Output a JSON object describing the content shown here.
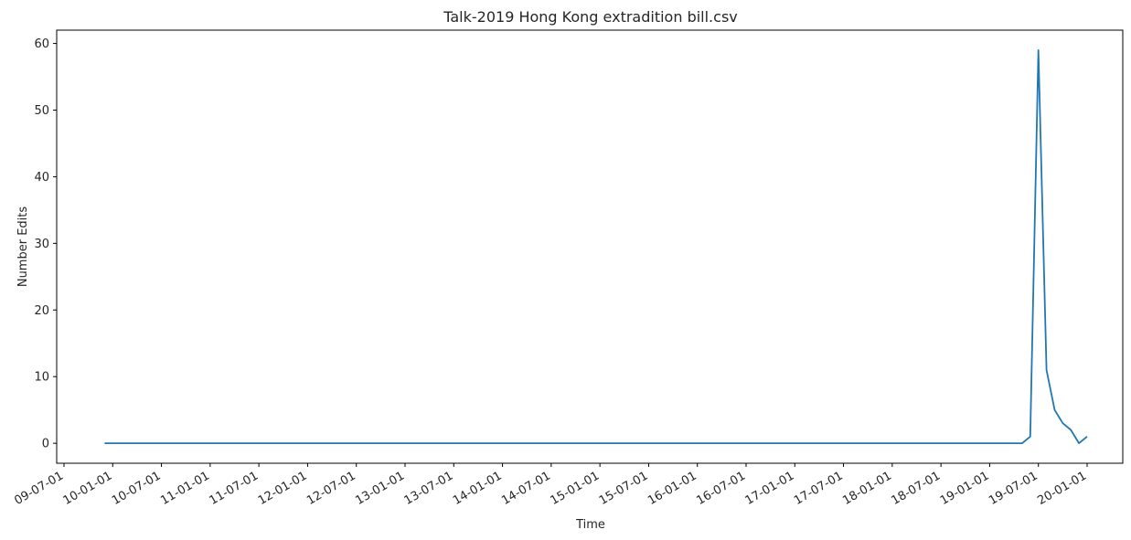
{
  "chart_data": {
    "type": "line",
    "title": "Talk-2019 Hong Kong extradition bill.csv",
    "xlabel": "Time",
    "ylabel": "Number Edits",
    "x_ticks": [
      "09-07-01",
      "10-01-01",
      "10-07-01",
      "11-01-01",
      "11-07-01",
      "12-01-01",
      "12-07-01",
      "13-01-01",
      "13-07-01",
      "14-01-01",
      "14-07-01",
      "15-01-01",
      "15-07-01",
      "16-01-01",
      "16-07-01",
      "17-01-01",
      "17-07-01",
      "18-01-01",
      "18-07-01",
      "19-01-01",
      "19-07-01",
      "20-01-01"
    ],
    "y_ticks": [
      "0",
      "10",
      "20",
      "30",
      "40",
      "50",
      "60"
    ],
    "ylim": [
      -3,
      62
    ],
    "grid": false,
    "color": "#1f77b4",
    "series": [
      {
        "x": [
          "09-12-01",
          "19-05-01",
          "19-06-01",
          "19-07-01",
          "19-08-01",
          "19-09-01",
          "19-10-01",
          "19-11-01",
          "19-12-01",
          "20-01-01"
        ],
        "values": [
          0,
          0,
          1,
          59,
          11,
          5,
          3,
          2,
          0,
          1
        ]
      }
    ]
  }
}
